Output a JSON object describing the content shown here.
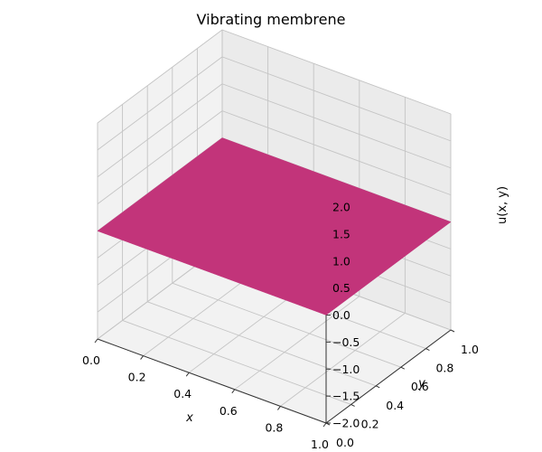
{
  "chart_data": {
    "type": "surface3d",
    "title": "Vibrating membrene",
    "xlabel": "x",
    "ylabel": "y",
    "zlabel": "u(x, y)",
    "xlim": [
      0,
      1
    ],
    "ylim": [
      0,
      1
    ],
    "zlim": [
      -2,
      2
    ],
    "xticks": [
      "0.0",
      "0.2",
      "0.4",
      "0.6",
      "0.8",
      "1.0"
    ],
    "yticks": [
      "0.0",
      "0.2",
      "0.4",
      "0.6",
      "0.8",
      "1.0"
    ],
    "zticks": [
      "−2.0",
      "−1.5",
      "−1.0",
      "−0.5",
      "0.0",
      "0.5",
      "1.0",
      "1.5",
      "2.0"
    ],
    "grid": true,
    "surface": {
      "x": [
        0,
        1
      ],
      "y": [
        0,
        1
      ],
      "z": [
        [
          0,
          0
        ],
        [
          0,
          0
        ]
      ],
      "color": "#c2347a"
    }
  }
}
